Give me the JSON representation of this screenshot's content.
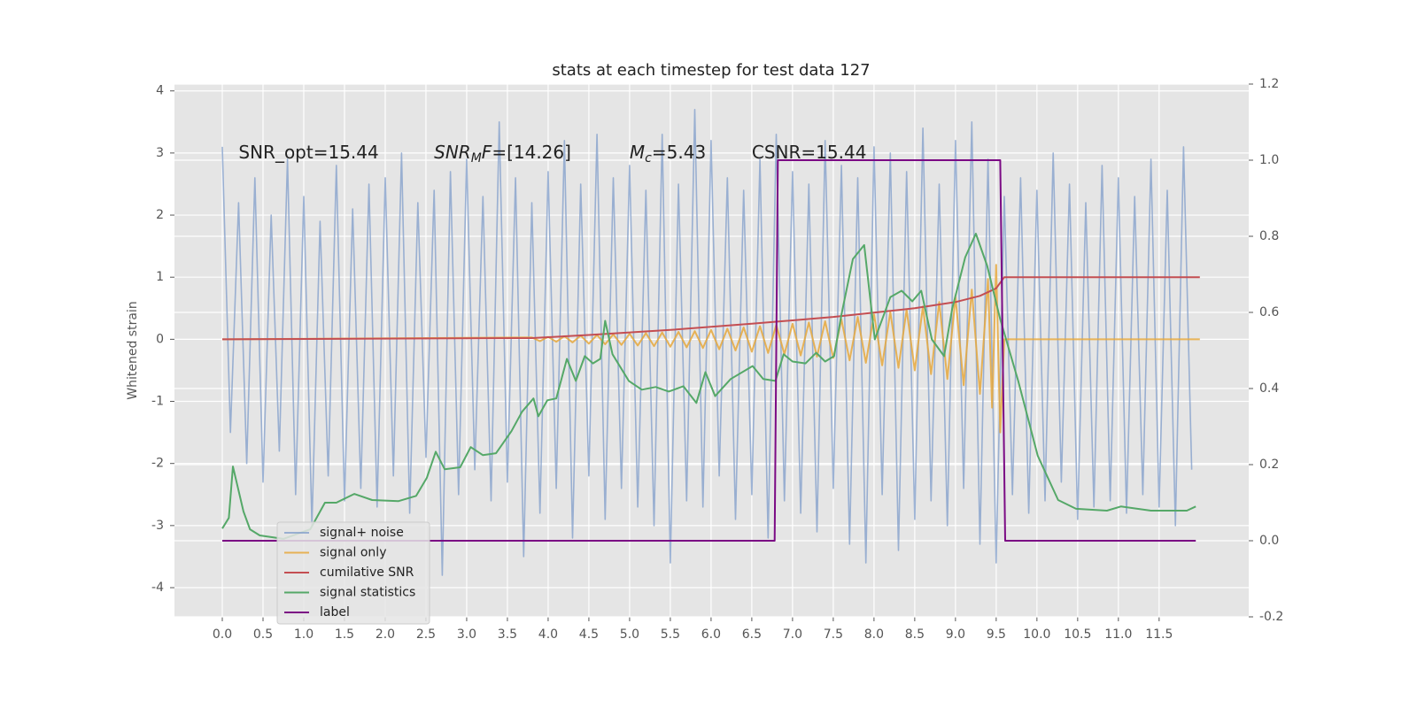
{
  "chart_data": {
    "type": "line",
    "title": "stats at each timestep for test data 127",
    "y_label": "Whitened strain",
    "xlim": [
      -0.587,
      12.6
    ],
    "ylim": [
      -4.47,
      4.11
    ],
    "y2lim": [
      -0.2,
      1.2
    ],
    "xticks": [
      {
        "value": 0,
        "label": "0.0"
      },
      0.5,
      {
        "value": 1,
        "label": "1.0"
      },
      1.5,
      {
        "value": 2,
        "label": "2.0"
      },
      2.5,
      {
        "value": 3,
        "label": "3.0"
      },
      3.5,
      {
        "value": 4,
        "label": "4.0"
      },
      4.5,
      {
        "value": 5,
        "label": "5.0"
      },
      5.5,
      {
        "value": 6,
        "label": "6.0"
      },
      6.5,
      {
        "value": 7,
        "label": "7.0"
      },
      7.5,
      {
        "value": 8,
        "label": "8.0"
      },
      8.5,
      {
        "value": 9,
        "label": "9.0"
      },
      9.5,
      {
        "value": 10,
        "label": "10.0"
      },
      10.5,
      {
        "value": 11,
        "label": "11.0"
      },
      11.5
    ],
    "yticks": [
      -4,
      -3,
      -2,
      -1,
      0,
      1,
      2,
      3,
      4
    ],
    "y2ticks": [
      -0.2,
      {
        "value": 0,
        "label": "0.0"
      },
      0.2,
      0.4,
      0.6,
      0.8,
      {
        "value": 1,
        "label": "1.0"
      },
      1.2
    ],
    "grid": true,
    "legend": "lower left",
    "annotations": [
      {
        "x": 0.2,
        "y": 3,
        "parts": [
          {
            "text": "SNR_opt=15.44"
          }
        ]
      },
      {
        "x": 2.6,
        "y": 3,
        "parts": [
          {
            "text": "SNR",
            "italic": true
          },
          {
            "text": "M",
            "italic": true,
            "sub": true
          },
          {
            "text": "F",
            "italic": true
          },
          {
            "text": "=[14.26]"
          }
        ]
      },
      {
        "x": 5.0,
        "y": 3,
        "parts": [
          {
            "text": "M",
            "italic": true
          },
          {
            "text": "c",
            "italic": true,
            "sub": true
          },
          {
            "text": "=5.43"
          }
        ]
      },
      {
        "x": 6.5,
        "y": 3,
        "parts": [
          {
            "text": "CSNR=15.44"
          }
        ]
      }
    ],
    "series": [
      {
        "name": "signal+ noise",
        "color": "#7f9cca",
        "alpha": 0.75,
        "x": [
          0,
          0.1,
          0.2,
          0.3,
          0.4,
          0.5,
          0.6,
          0.7,
          0.8,
          0.9,
          1,
          1.1,
          1.2,
          1.3,
          1.4,
          1.5,
          1.6,
          1.7,
          1.8,
          1.9,
          2,
          2.1,
          2.2,
          2.3,
          2.4,
          2.5,
          2.6,
          2.7,
          2.8,
          2.9,
          3,
          3.1,
          3.2,
          3.3,
          3.4,
          3.5,
          3.6,
          3.7,
          3.8,
          3.9,
          4,
          4.1,
          4.2,
          4.3,
          4.4,
          4.5,
          4.6,
          4.7,
          4.8,
          4.9,
          5,
          5.1,
          5.2,
          5.3,
          5.4,
          5.5,
          5.6,
          5.7,
          5.8,
          5.9,
          6,
          6.1,
          6.2,
          6.3,
          6.4,
          6.5,
          6.6,
          6.7,
          6.8,
          6.9,
          7,
          7.1,
          7.2,
          7.3,
          7.4,
          7.5,
          7.6,
          7.7,
          7.8,
          7.9,
          8,
          8.1,
          8.2,
          8.3,
          8.4,
          8.5,
          8.6,
          8.7,
          8.8,
          8.9,
          9,
          9.1,
          9.2,
          9.3,
          9.4,
          9.5,
          9.6,
          9.7,
          9.8,
          9.9,
          10,
          10.1,
          10.2,
          10.3,
          10.4,
          10.5,
          10.6,
          10.7,
          10.8,
          10.9,
          11,
          11.1,
          11.2,
          11.3,
          11.4,
          11.5,
          11.6,
          11.7,
          11.8,
          11.9
        ],
        "values": [
          3.1,
          -1.5,
          2.2,
          -2.0,
          2.6,
          -2.3,
          2.0,
          -1.8,
          2.9,
          -2.5,
          2.3,
          -3.0,
          1.9,
          -2.2,
          2.8,
          -2.6,
          2.1,
          -2.4,
          2.5,
          -2.7,
          2.6,
          -2.2,
          3.0,
          -2.8,
          2.2,
          -1.9,
          2.4,
          -3.8,
          2.7,
          -2.5,
          2.9,
          -2.1,
          2.3,
          -2.6,
          3.5,
          -2.3,
          2.6,
          -3.5,
          2.2,
          -2.8,
          2.7,
          -2.4,
          3.2,
          -3.2,
          2.5,
          -2.2,
          3.3,
          -2.9,
          2.6,
          -2.4,
          2.8,
          -2.7,
          2.4,
          -3.0,
          3.3,
          -3.6,
          2.5,
          -2.6,
          3.7,
          -2.7,
          3.2,
          -2.2,
          2.6,
          -2.9,
          2.4,
          -2.5,
          2.9,
          -3.2,
          3.3,
          -2.6,
          2.7,
          -2.8,
          2.5,
          -3.1,
          3.2,
          -2.4,
          2.8,
          -3.3,
          2.6,
          -3.6,
          3.1,
          -2.5,
          3.0,
          -3.4,
          2.7,
          -2.9,
          3.4,
          -2.6,
          2.5,
          -3.0,
          3.2,
          -2.4,
          3.5,
          -3.3,
          2.9,
          -3.6,
          2.3,
          -2.5,
          2.6,
          -2.8,
          2.4,
          -2.6,
          3.0,
          -2.3,
          2.5,
          -2.9,
          2.2,
          -2.7,
          2.8,
          -2.6,
          2.6,
          -2.8,
          2.3,
          -2.5,
          2.9,
          -2.7,
          2.4,
          -3.0,
          3.1,
          -2.1
        ]
      },
      {
        "name": "signal only",
        "color": "#e6a83c",
        "alpha": 0.85,
        "x": [
          0,
          3.8,
          3.9,
          4,
          4.1,
          4.2,
          4.3,
          4.4,
          4.5,
          4.6,
          4.7,
          4.8,
          4.9,
          5,
          5.1,
          5.2,
          5.3,
          5.4,
          5.5,
          5.6,
          5.7,
          5.8,
          5.9,
          6,
          6.1,
          6.2,
          6.3,
          6.4,
          6.5,
          6.6,
          6.7,
          6.8,
          6.9,
          7,
          7.1,
          7.2,
          7.3,
          7.4,
          7.5,
          7.6,
          7.7,
          7.8,
          7.9,
          8,
          8.1,
          8.2,
          8.3,
          8.4,
          8.5,
          8.6,
          8.7,
          8.8,
          8.9,
          9,
          9.1,
          9.2,
          9.3,
          9.4,
          9.45,
          9.5,
          9.55,
          9.6,
          12
        ],
        "values": [
          0,
          0.03,
          -0.03,
          0.04,
          -0.04,
          0.05,
          -0.05,
          0.06,
          -0.07,
          0.07,
          -0.08,
          0.08,
          -0.09,
          0.09,
          -0.1,
          0.1,
          -0.11,
          0.11,
          -0.12,
          0.12,
          -0.13,
          0.13,
          -0.14,
          0.15,
          -0.16,
          0.17,
          -0.18,
          0.19,
          -0.2,
          0.21,
          -0.22,
          0.23,
          -0.24,
          0.25,
          -0.26,
          0.27,
          -0.28,
          0.29,
          -0.3,
          0.32,
          -0.34,
          0.36,
          -0.38,
          0.4,
          -0.42,
          0.44,
          -0.46,
          0.48,
          -0.5,
          0.53,
          -0.56,
          0.6,
          -0.64,
          0.68,
          -0.74,
          0.8,
          -0.88,
          0.97,
          -1.1,
          1.2,
          -1.5,
          0,
          0
        ]
      },
      {
        "name": "cumilative SNR",
        "color": "#c44e52",
        "alpha": 1,
        "x": [
          0,
          3.8,
          4.5,
          5.5,
          6.5,
          7.5,
          8.5,
          9.0,
          9.3,
          9.5,
          9.6,
          12
        ],
        "values": [
          0,
          0.02,
          0.07,
          0.15,
          0.25,
          0.36,
          0.5,
          0.6,
          0.7,
          0.82,
          1,
          1
        ]
      },
      {
        "name": "signal statistics",
        "color": "#55a868",
        "alpha": 1,
        "axis": "y2",
        "x": [
          0,
          0.08,
          0.13,
          0.26,
          0.34,
          0.46,
          0.75,
          1.08,
          1.26,
          1.4,
          1.62,
          1.84,
          2.16,
          2.38,
          2.51,
          2.62,
          2.73,
          2.92,
          3.05,
          3.2,
          3.36,
          3.55,
          3.68,
          3.82,
          3.88,
          3.99,
          4.1,
          4.23,
          4.34,
          4.45,
          4.55,
          4.64,
          4.7,
          4.79,
          4.99,
          5.15,
          5.32,
          5.48,
          5.66,
          5.82,
          5.93,
          6.05,
          6.24,
          6.51,
          6.64,
          6.79,
          6.89,
          7.0,
          7.16,
          7.29,
          7.4,
          7.51,
          7.6,
          7.74,
          7.88,
          8.01,
          8.2,
          8.34,
          8.47,
          8.58,
          8.71,
          8.86,
          8.96,
          9.12,
          9.25,
          9.39,
          9.55,
          9.77,
          10.01,
          10.26,
          10.48,
          10.86,
          11.03,
          11.4,
          11.84,
          11.95
        ],
        "values": [
          0.032,
          0.06,
          0.195,
          0.077,
          0.03,
          0.014,
          0.005,
          0.03,
          0.1,
          0.1,
          0.123,
          0.107,
          0.104,
          0.118,
          0.165,
          0.234,
          0.188,
          0.193,
          0.246,
          0.225,
          0.23,
          0.288,
          0.339,
          0.374,
          0.327,
          0.369,
          0.374,
          0.478,
          0.42,
          0.485,
          0.466,
          0.478,
          0.578,
          0.49,
          0.42,
          0.397,
          0.404,
          0.392,
          0.406,
          0.362,
          0.443,
          0.38,
          0.425,
          0.459,
          0.425,
          0.42,
          0.49,
          0.471,
          0.466,
          0.494,
          0.471,
          0.485,
          0.594,
          0.74,
          0.777,
          0.529,
          0.64,
          0.657,
          0.629,
          0.657,
          0.529,
          0.485,
          0.61,
          0.745,
          0.807,
          0.722,
          0.582,
          0.42,
          0.223,
          0.107,
          0.084,
          0.079,
          0.09,
          0.079,
          0.079,
          0.09
        ]
      },
      {
        "name": "label",
        "color": "#7b0a84",
        "alpha": 1,
        "axis": "y2",
        "x": [
          0,
          6.78,
          6.82,
          9.55,
          9.61,
          11.95
        ],
        "values": [
          0,
          0,
          1,
          1,
          0,
          0
        ]
      }
    ]
  }
}
